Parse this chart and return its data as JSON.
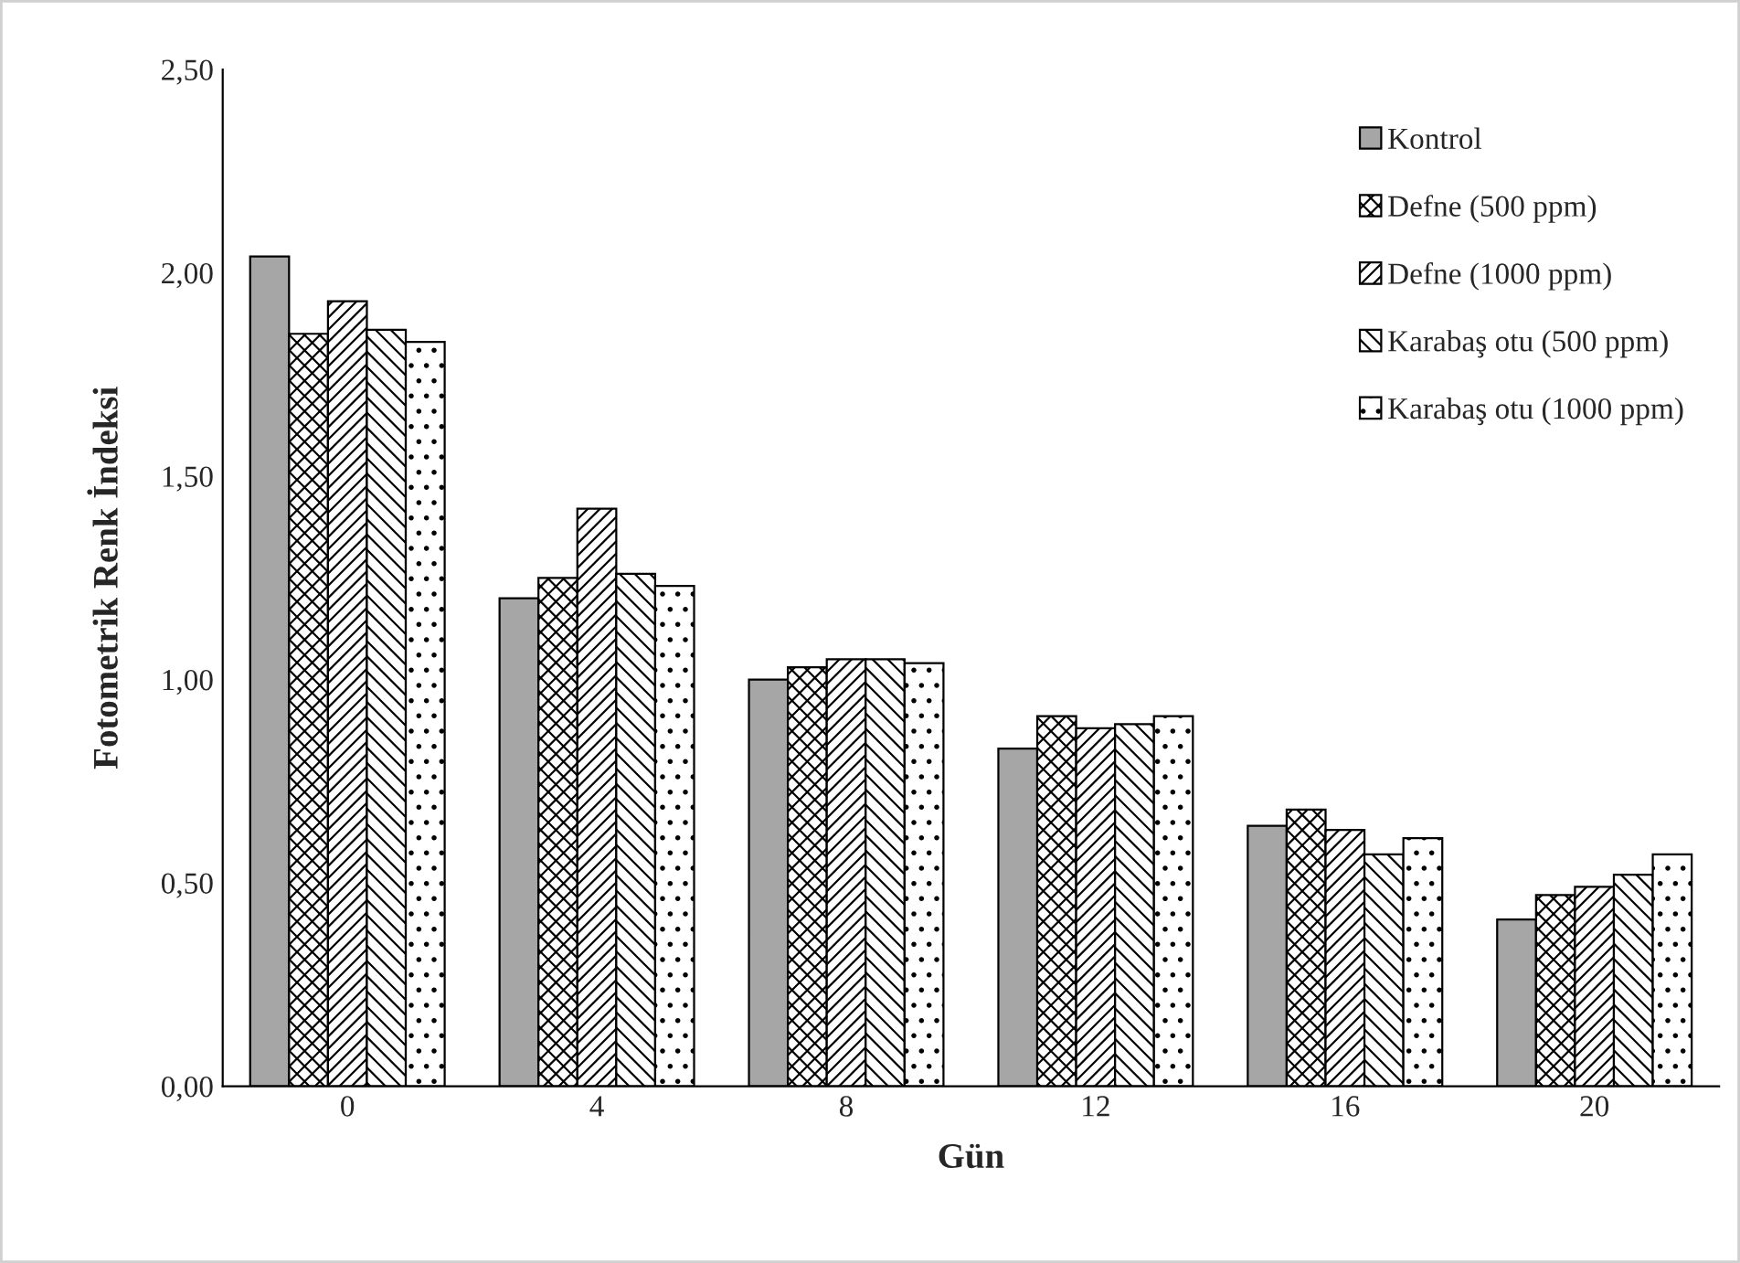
{
  "chart_data": {
    "type": "bar",
    "xlabel": "Gün",
    "ylabel": "Fotometrik Renk İndeksi",
    "categories": [
      "0",
      "4",
      "8",
      "12",
      "16",
      "20"
    ],
    "series": [
      {
        "name": "Kontrol",
        "color": "#a6a6a6",
        "values": [
          2.04,
          1.2,
          1.0,
          0.83,
          0.64,
          0.41
        ]
      },
      {
        "name": "Defne (500 ppm)",
        "color": "#000000",
        "values": [
          1.85,
          1.25,
          1.03,
          0.91,
          0.68,
          0.47
        ]
      },
      {
        "name": "Defne (1000 ppm)",
        "color": "#000000",
        "values": [
          1.93,
          1.42,
          1.05,
          0.88,
          0.63,
          0.49
        ]
      },
      {
        "name": "Karabaş otu (500 ppm)",
        "color": "#000000",
        "values": [
          1.86,
          1.26,
          1.05,
          0.89,
          0.57,
          0.52
        ]
      },
      {
        "name": "Karabaş otu (1000 ppm)",
        "color": "#000000",
        "values": [
          1.83,
          1.23,
          1.04,
          0.91,
          0.61,
          0.57
        ]
      }
    ],
    "ylim": [
      0,
      2.5
    ],
    "yticks": [
      {
        "value": 0,
        "label": "0,00"
      },
      {
        "value": 0.5,
        "label": "0,50"
      },
      {
        "value": 1.0,
        "label": "1,00"
      },
      {
        "value": 1.5,
        "label": "1,50"
      },
      {
        "value": 2.0,
        "label": "2,00"
      },
      {
        "value": 2.5,
        "label": "2,50"
      }
    ],
    "grid": false,
    "legend": "top right"
  }
}
